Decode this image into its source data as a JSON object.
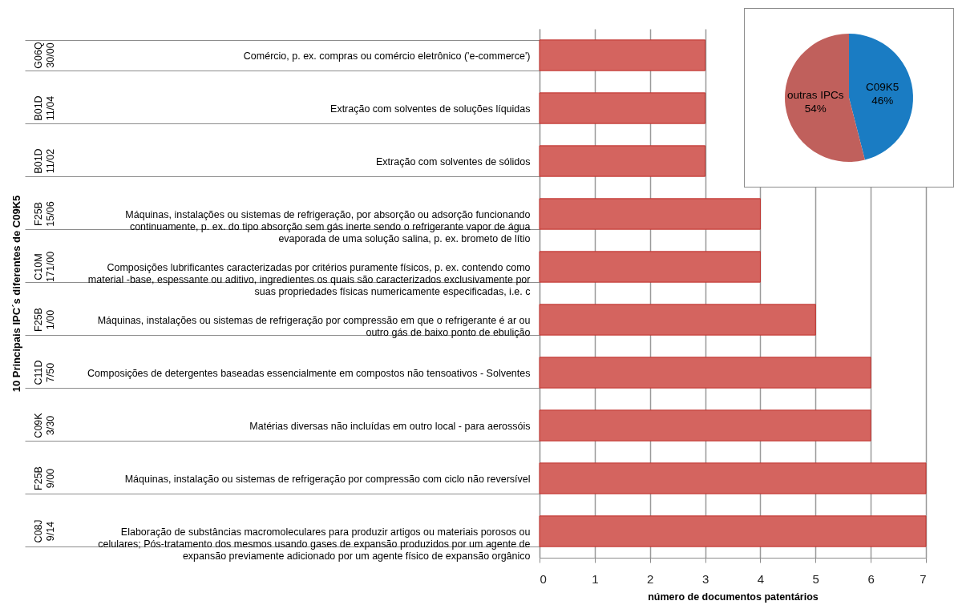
{
  "chart_data": [
    {
      "type": "bar",
      "orientation": "horizontal",
      "ylabel": "10 Principais IPC´s diferentes de C09K5",
      "xlabel": "número de documentos patentários",
      "categories": [
        "Comércio, p. ex. compras ou comércio eletrônico ('e-commerce')",
        "Extração com solventes de soluções líquidas",
        "Extração com solventes de sólidos",
        "Máquinas, instalações ou sistemas de refrigeração, por absorção ou adsorção funcionando continuamente, p. ex. do tipo absorção sem gás inerte sendo o refrigerante vapor de água evaporada de uma solução salina, p. ex. brometo de lítio",
        "Composições lubrificantes caracterizadas por critérios puramente físicos, p. ex. contendo como material -base, espessante ou aditivo, ingredientes os quais são caracterizados exclusivamente por suas propriedades físicas numericamente especificadas, i.e. c",
        "Máquinas, instalações ou sistemas de refrigeração por compressão em que o refrigerante é ar ou outro gás de baixo ponto de ebulição",
        "Composições de detergentes baseadas essencialmente em compostos não tensoativos - Solventes",
        "Matérias diversas não incluídas em outro local - para aerossóis",
        "Máquinas, instalação ou sistemas de refrigeração por compressão com ciclo não reversível",
        "Elaboração de substâncias macromoleculares para produzir artigos ou materiais porosos ou celulares; Pós-tratamento dos mesmos usando gases de expansão produzidos por um agente de expansão previamente adicionado por um agente físico de expansão orgânico"
      ],
      "values": [
        3,
        3,
        3,
        4,
        4,
        5,
        6,
        6,
        7,
        7
      ],
      "color": "#d4645f",
      "xlim": [
        0,
        7
      ],
      "xticks": [
        0,
        1,
        2,
        3,
        4,
        5,
        6,
        7
      ],
      "grid": "x",
      "annotations": [
        "G06Q 30/00",
        "B01D 11/04",
        "B01D 11/02",
        "F25B 15/06",
        "C10M 171/00",
        "F25B 1/00",
        "C11D 7/50",
        "C09K 3/30",
        "F25B 9/00",
        "C08J 9/14"
      ]
    },
    {
      "type": "pie",
      "categories": [
        "C09K5",
        "outras IPCs"
      ],
      "values": [
        46,
        54
      ],
      "colors": [
        "#1a7cc3",
        "#c0605c"
      ],
      "value_labels": [
        "46%",
        "54%"
      ]
    }
  ]
}
